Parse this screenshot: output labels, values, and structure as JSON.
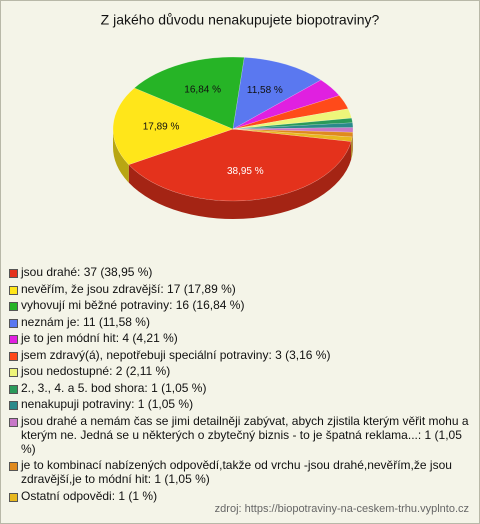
{
  "chart_data": {
    "type": "pie",
    "title": "Z jakého důvodu nenakupujete biopotraviny?",
    "categories": [
      "jsou drahé: 37 (38,95 %)",
      "nevěřím, že jsou zdravější: 17 (17,89 %)",
      "vyhovují mi běžné potraviny: 16 (16,84 %)",
      "neznám je: 11 (11,58 %)",
      "je to jen módní hit: 4 (4,21 %)",
      "jsem zdravý(á), nepotřebuji speciální potraviny: 3 (3,16 %)",
      "jsou nedostupné: 2 (2,11 %)",
      "2., 3., 4. a 5.  bod  shora: 1 (1,05 %)",
      "nenakupuji potraviny: 1 (1,05 %)",
      "jsou drahé a nemám čas se jimi detailněji zabývat, abych zjistila kterým věřit mohu a kterým ne. Jedná se u některých o zbytečný biznis - to je špatná reklama...: 1 (1,05 %)",
      "je to kombinací nabízených odpovědí,takže od vrchu -jsou drahé,nevěřím,že jsou zdravější,je to módní hit: 1 (1,05 %)",
      "Ostatní odpovědi: 1 (1 %)"
    ],
    "values": [
      38.95,
      17.89,
      16.84,
      11.58,
      4.21,
      3.16,
      2.11,
      1.05,
      1.05,
      1.05,
      1.05,
      1
    ],
    "value_labels": [
      "38,95 %",
      "17,89 %",
      "16,84 %",
      "11,58 %",
      null,
      null,
      null,
      null,
      null,
      null,
      null,
      null
    ],
    "colors": [
      "#e4321c",
      "#ffe61a",
      "#26b426",
      "#5a78f0",
      "#e020e0",
      "#ff4a1a",
      "#eef57a",
      "#2a9a5a",
      "#2a8a8a",
      "#c878c8",
      "#e08a1e",
      "#e8b81e"
    ],
    "source": "zdroj: https://biopotraviny-na-ceskem-trhu.vyplnto.cz"
  }
}
